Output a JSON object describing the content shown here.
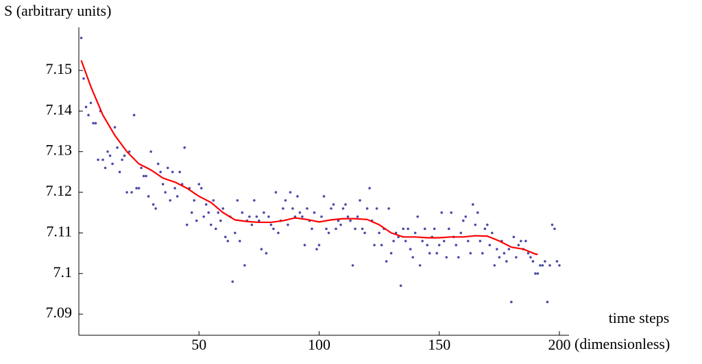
{
  "chart_data": {
    "type": "scatter-with-fit",
    "y_label": "S (arbitrary units)",
    "x_label_lines": [
      "time steps",
      "(dimensionless)"
    ],
    "xlim": [
      0,
      204
    ],
    "ylim": [
      7.0848,
      7.1606
    ],
    "xticks": [
      50,
      100,
      150,
      200
    ],
    "yticks": [
      7.09,
      7.1,
      7.11,
      7.12,
      7.13,
      7.14,
      7.15
    ],
    "scatter": {
      "color": "#4b4ba8",
      "x": [
        1,
        2,
        3,
        4,
        5,
        6,
        7,
        8,
        9,
        10,
        11,
        12,
        13,
        14,
        15,
        16,
        17,
        18,
        19,
        20,
        21,
        22,
        23,
        24,
        25,
        26,
        27,
        28,
        29,
        30,
        31,
        32,
        33,
        34,
        35,
        36,
        37,
        38,
        39,
        40,
        41,
        42,
        43,
        44,
        45,
        46,
        47,
        48,
        49,
        50,
        51,
        52,
        53,
        54,
        55,
        56,
        57,
        58,
        59,
        60,
        61,
        62,
        63,
        64,
        65,
        66,
        67,
        68,
        69,
        70,
        71,
        72,
        73,
        74,
        75,
        76,
        77,
        78,
        79,
        80,
        81,
        82,
        83,
        84,
        85,
        86,
        87,
        88,
        89,
        90,
        91,
        92,
        93,
        94,
        95,
        96,
        97,
        98,
        99,
        100,
        101,
        102,
        103,
        104,
        105,
        106,
        107,
        108,
        109,
        110,
        111,
        112,
        113,
        114,
        115,
        116,
        117,
        118,
        119,
        120,
        121,
        122,
        123,
        124,
        125,
        126,
        127,
        128,
        129,
        130,
        131,
        132,
        133,
        134,
        135,
        136,
        137,
        138,
        139,
        140,
        141,
        142,
        143,
        144,
        145,
        146,
        147,
        148,
        149,
        150,
        151,
        152,
        153,
        154,
        155,
        156,
        157,
        158,
        159,
        160,
        161,
        162,
        163,
        164,
        165,
        166,
        167,
        168,
        169,
        170,
        171,
        172,
        173,
        174,
        175,
        176,
        177,
        178,
        179,
        180,
        181,
        182,
        183,
        184,
        185,
        186,
        187,
        188,
        189,
        190,
        191,
        192,
        193,
        194,
        195,
        196,
        197,
        198,
        199,
        200
      ],
      "values": [
        7.158,
        7.148,
        7.141,
        7.139,
        7.142,
        7.137,
        7.137,
        7.128,
        7.14,
        7.128,
        7.126,
        7.13,
        7.129,
        7.127,
        7.136,
        7.131,
        7.125,
        7.128,
        7.129,
        7.12,
        7.13,
        7.12,
        7.139,
        7.121,
        7.121,
        7.126,
        7.124,
        7.124,
        7.119,
        7.13,
        7.117,
        7.116,
        7.127,
        7.125,
        7.122,
        7.12,
        7.126,
        7.118,
        7.125,
        7.121,
        7.119,
        7.125,
        7.122,
        7.131,
        7.112,
        7.121,
        7.115,
        7.118,
        7.113,
        7.122,
        7.121,
        7.114,
        7.117,
        7.115,
        7.112,
        7.118,
        7.111,
        7.115,
        7.113,
        7.116,
        7.109,
        7.108,
        7.114,
        7.098,
        7.11,
        7.118,
        7.108,
        7.115,
        7.102,
        7.113,
        7.114,
        7.112,
        7.118,
        7.114,
        7.113,
        7.106,
        7.115,
        7.105,
        7.114,
        7.112,
        7.111,
        7.12,
        7.11,
        7.113,
        7.116,
        7.118,
        7.112,
        7.12,
        7.116,
        7.114,
        7.119,
        7.115,
        7.114,
        7.107,
        7.116,
        7.113,
        7.111,
        7.115,
        7.106,
        7.107,
        7.114,
        7.119,
        7.111,
        7.11,
        7.116,
        7.117,
        7.111,
        7.113,
        7.112,
        7.116,
        7.117,
        7.114,
        7.113,
        7.102,
        7.111,
        7.114,
        7.118,
        7.111,
        7.11,
        7.116,
        7.121,
        7.113,
        7.107,
        7.116,
        7.11,
        7.107,
        7.111,
        7.103,
        7.116,
        7.105,
        7.108,
        7.11,
        7.109,
        7.097,
        7.111,
        7.108,
        7.111,
        7.106,
        7.104,
        7.11,
        7.114,
        7.102,
        7.108,
        7.111,
        7.107,
        7.105,
        7.109,
        7.111,
        7.105,
        7.107,
        7.115,
        7.108,
        7.104,
        7.111,
        7.115,
        7.109,
        7.107,
        7.104,
        7.11,
        7.113,
        7.114,
        7.108,
        7.105,
        7.117,
        7.112,
        7.115,
        7.108,
        7.105,
        7.111,
        7.112,
        7.107,
        7.11,
        7.102,
        7.106,
        7.104,
        7.108,
        7.105,
        7.103,
        7.106,
        7.093,
        7.109,
        7.104,
        7.107,
        7.108,
        7.106,
        7.108,
        7.105,
        7.104,
        7.103,
        7.1,
        7.1,
        7.102,
        7.102,
        7.103,
        7.093,
        7.102,
        7.112,
        7.111,
        7.103,
        7.102
      ]
    },
    "line": {
      "color": "#ff0000",
      "x": [
        1,
        5,
        10,
        15,
        20,
        25,
        30,
        35,
        40,
        45,
        50,
        55,
        60,
        65,
        70,
        75,
        80,
        85,
        90,
        95,
        100,
        105,
        110,
        115,
        120,
        125,
        130,
        135,
        140,
        145,
        150,
        155,
        160,
        165,
        170,
        175,
        180,
        185,
        190,
        191
      ],
      "values": [
        7.1525,
        7.146,
        7.139,
        7.134,
        7.13,
        7.127,
        7.1255,
        7.1235,
        7.1225,
        7.121,
        7.119,
        7.1175,
        7.115,
        7.1132,
        7.1128,
        7.1126,
        7.1126,
        7.113,
        7.1137,
        7.1133,
        7.1127,
        7.1132,
        7.1135,
        7.1135,
        7.1133,
        7.112,
        7.11,
        7.109,
        7.109,
        7.1088,
        7.1088,
        7.109,
        7.109,
        7.1093,
        7.1092,
        7.108,
        7.1065,
        7.106,
        7.1048,
        7.1047
      ]
    }
  }
}
